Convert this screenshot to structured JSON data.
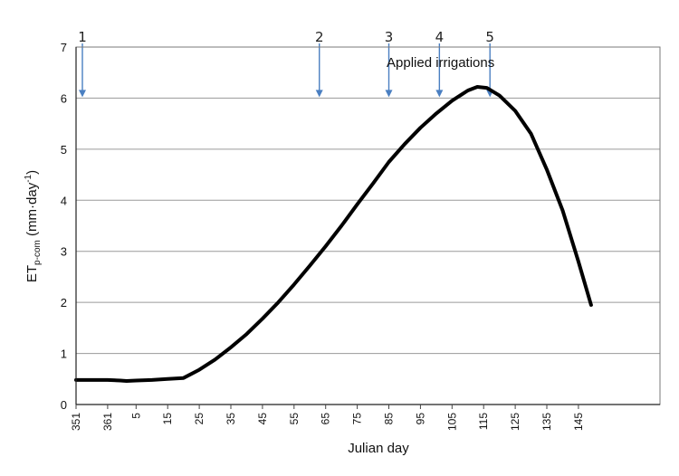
{
  "chart_data": {
    "type": "line",
    "title": "",
    "xlabel": "Julian day",
    "ylabel": {
      "main": "ET",
      "subscript": "p-com",
      "unit_prefix": " (mm·day",
      "unit_sup": "-1",
      "unit_suffix": ")"
    },
    "ylim": [
      0,
      7
    ],
    "yticks": [
      "0",
      "1",
      "2",
      "3",
      "4",
      "5",
      "6",
      "7"
    ],
    "xticks": [
      "351",
      "361",
      "5",
      "15",
      "25",
      "35",
      "45",
      "55",
      "65",
      "75",
      "85",
      "95",
      "105",
      "115",
      "125",
      "135",
      "145"
    ],
    "grid": "horizontal",
    "annotation": "Applied irrigations",
    "irrigations": [
      {
        "label": "1",
        "day": 351
      },
      {
        "label": "2",
        "day": 63
      },
      {
        "label": "3",
        "day": 85
      },
      {
        "label": "4",
        "day": 101
      },
      {
        "label": "5",
        "day": 117
      }
    ],
    "series": [
      {
        "color": "#000000",
        "points": [
          [
            351,
            0.48
          ],
          [
            356,
            0.48
          ],
          [
            361,
            0.48
          ],
          [
            365,
            0.47
          ],
          [
            2,
            0.46
          ],
          [
            5,
            0.47
          ],
          [
            10,
            0.48
          ],
          [
            15,
            0.5
          ],
          [
            20,
            0.52
          ],
          [
            25,
            0.68
          ],
          [
            30,
            0.88
          ],
          [
            35,
            1.12
          ],
          [
            40,
            1.38
          ],
          [
            45,
            1.68
          ],
          [
            50,
            2.0
          ],
          [
            55,
            2.35
          ],
          [
            60,
            2.72
          ],
          [
            65,
            3.1
          ],
          [
            70,
            3.5
          ],
          [
            75,
            3.92
          ],
          [
            80,
            4.33
          ],
          [
            85,
            4.75
          ],
          [
            90,
            5.1
          ],
          [
            95,
            5.42
          ],
          [
            100,
            5.7
          ],
          [
            105,
            5.95
          ],
          [
            110,
            6.15
          ],
          [
            113,
            6.22
          ],
          [
            116,
            6.2
          ],
          [
            120,
            6.05
          ],
          [
            125,
            5.75
          ],
          [
            130,
            5.3
          ],
          [
            135,
            4.6
          ],
          [
            140,
            3.8
          ],
          [
            145,
            2.8
          ],
          [
            149,
            1.95
          ]
        ]
      }
    ]
  }
}
